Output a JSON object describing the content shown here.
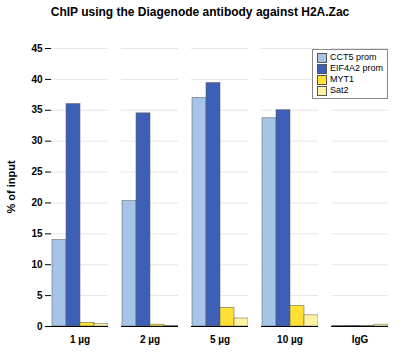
{
  "chart_data": {
    "type": "bar",
    "title": "ChIP using the Diagenode antibody against H2A.Zac",
    "y_label": "% of input",
    "categories": [
      "1 µg",
      "2 µg",
      "5 µg",
      "10 µg",
      "IgG"
    ],
    "series": [
      {
        "name": "CCT5 prom",
        "color": "#a6c4e8",
        "values": [
          14,
          20.3,
          37,
          33.7,
          0.1
        ]
      },
      {
        "name": "EIF4A2 prom",
        "color": "#3d5fb5",
        "values": [
          36,
          34.5,
          39.4,
          35,
          0.1
        ]
      },
      {
        "name": "MYT1",
        "color": "#ffe033",
        "values": [
          0.6,
          0.3,
          3,
          3.3,
          0.1
        ]
      },
      {
        "name": "Sat2",
        "color": "#fff2a3",
        "values": [
          0.4,
          0.1,
          1.3,
          1.8,
          0.3
        ]
      }
    ],
    "ylim": [
      0,
      45
    ],
    "yticks": [
      0,
      5,
      10,
      15,
      20,
      25,
      30,
      35,
      40,
      45
    ],
    "grid": true,
    "legend": "top-right"
  }
}
